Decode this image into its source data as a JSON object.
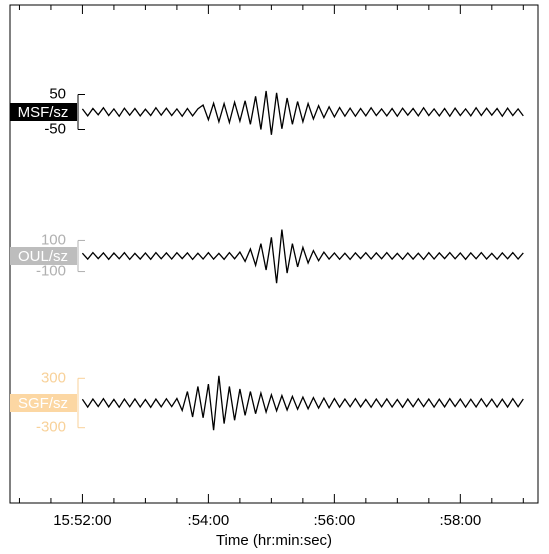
{
  "chart_data": {
    "type": "line",
    "xlabel": "Time (hr:min:sec)",
    "xlim": [
      -69,
      434
    ],
    "xticks": [
      {
        "value": 0,
        "label": "15:52:00"
      },
      {
        "value": 120,
        "label": ":54:00"
      },
      {
        "value": 240,
        "label": ":56:00"
      },
      {
        "value": 360,
        "label": ":58:00"
      }
    ],
    "xminorticks": [
      -60,
      -30,
      30,
      60,
      90,
      150,
      180,
      210,
      270,
      300,
      330,
      390,
      420
    ],
    "x": [
      0,
      5,
      10,
      15,
      20,
      25,
      30,
      35,
      40,
      45,
      50,
      55,
      60,
      65,
      70,
      75,
      80,
      85,
      90,
      95,
      100,
      105,
      110,
      115,
      120,
      125,
      130,
      135,
      140,
      145,
      150,
      155,
      160,
      165,
      170,
      175,
      180,
      185,
      190,
      195,
      200,
      205,
      210,
      215,
      220,
      225,
      230,
      235,
      240,
      245,
      250,
      255,
      260,
      265,
      270,
      275,
      280,
      285,
      290,
      295,
      300,
      305,
      310,
      315,
      320,
      325,
      330,
      335,
      340,
      345,
      350,
      355,
      360,
      365,
      370,
      375,
      380,
      385,
      390,
      395,
      400,
      405,
      410,
      415,
      420
    ],
    "series": [
      {
        "name": "MSF/sz",
        "color": "#000000",
        "label_color": "#000000",
        "tick_color": "#000000",
        "ylim": [
          -200,
          200
        ],
        "yticks": [
          50,
          -50
        ],
        "values": [
          9,
          -11,
          10,
          -8,
          12,
          -10,
          9,
          -12,
          11,
          -9,
          10,
          -11,
          8,
          -10,
          12,
          -9,
          11,
          -10,
          9,
          -12,
          10,
          -11,
          9,
          20,
          -22,
          25,
          -28,
          24,
          -30,
          28,
          -26,
          32,
          -35,
          45,
          -50,
          60,
          -65,
          55,
          -48,
          40,
          -35,
          30,
          -28,
          24,
          -20,
          18,
          -16,
          15,
          -14,
          13,
          -12,
          11,
          -12,
          10,
          -11,
          12,
          -10,
          9,
          -11,
          10,
          -12,
          11,
          -9,
          10,
          -11,
          12,
          -10,
          9,
          -11,
          10,
          -12,
          11,
          -10,
          9,
          -11,
          12,
          -10,
          11,
          -9,
          10,
          -12,
          11,
          -10,
          9,
          -11
        ]
      },
      {
        "name": "OUL/sz",
        "color": "#000000",
        "label_color": "#bdbdbd",
        "tick_color": "#b0b0b0",
        "ylim": [
          -450,
          450
        ],
        "yticks": [
          100,
          -100
        ],
        "values": [
          18,
          -20,
          22,
          -17,
          20,
          -21,
          19,
          -18,
          21,
          -22,
          17,
          -20,
          19,
          -21,
          22,
          -18,
          20,
          -19,
          21,
          -17,
          20,
          -22,
          18,
          -19,
          21,
          -20,
          17,
          -21,
          22,
          -18,
          25,
          -35,
          45,
          -60,
          80,
          -90,
          120,
          -175,
          170,
          -110,
          80,
          -70,
          55,
          -45,
          35,
          -30,
          25,
          -20,
          19,
          -21,
          18,
          -22,
          20,
          -17,
          21,
          -19,
          20,
          -18,
          22,
          -20,
          17,
          -21,
          19,
          -20,
          18,
          -22,
          21,
          -19,
          20,
          -17,
          22,
          -18,
          19,
          -21,
          20,
          -18,
          22,
          -19,
          17,
          -21,
          20,
          -18,
          22,
          -19,
          20
        ]
      },
      {
        "name": "SGF/sz",
        "color": "#000000",
        "label_color": "#fcd7a3",
        "tick_color": "#f8d199",
        "ylim": [
          -850,
          850
        ],
        "yticks": [
          300,
          -300
        ],
        "values": [
          45,
          -50,
          48,
          -42,
          52,
          -47,
          44,
          -51,
          49,
          -45,
          50,
          -48,
          43,
          -52,
          47,
          -46,
          51,
          -44,
          55,
          -90,
          140,
          -170,
          200,
          -180,
          230,
          -330,
          330,
          -250,
          200,
          -210,
          170,
          -150,
          140,
          -130,
          120,
          -110,
          100,
          -95,
          90,
          -85,
          80,
          -75,
          72,
          -70,
          65,
          -62,
          60,
          -58,
          55,
          -50,
          48,
          -45,
          52,
          -47,
          44,
          -51,
          49,
          -46,
          50,
          -48,
          43,
          -52,
          47,
          -45,
          51,
          -44,
          49,
          -50,
          46,
          -47,
          52,
          -43,
          48,
          -50,
          45,
          -49,
          51,
          -44,
          47,
          -50,
          46,
          -48,
          52,
          -45,
          49
        ]
      }
    ]
  }
}
